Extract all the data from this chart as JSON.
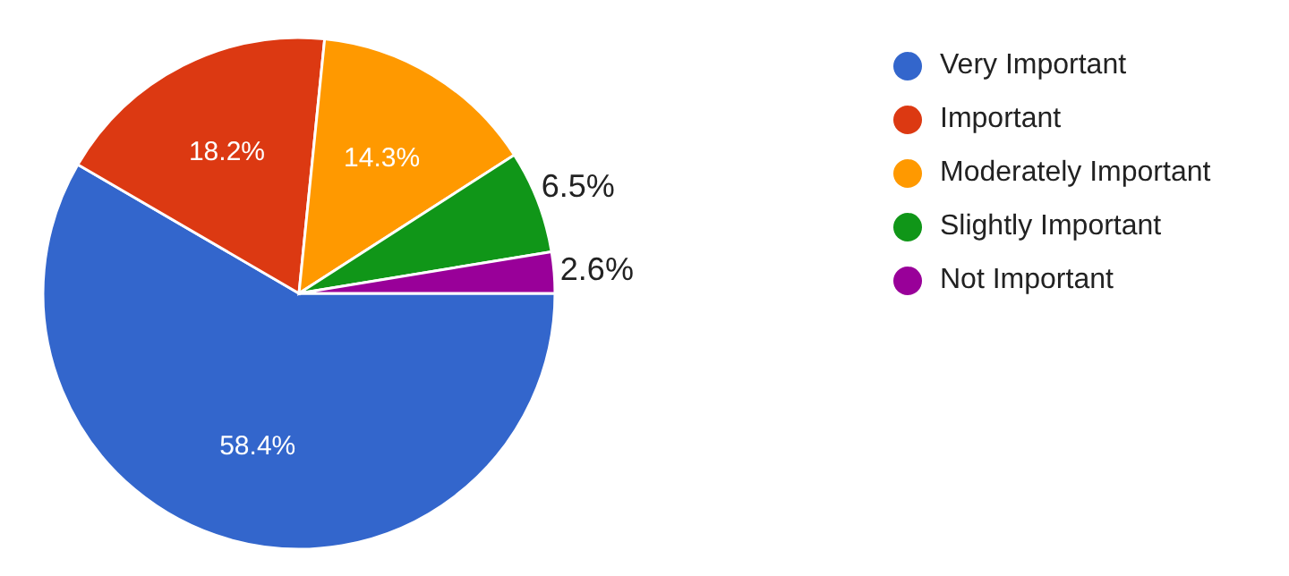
{
  "chart_data": {
    "type": "pie",
    "categories": [
      "Very Important",
      "Important",
      "Moderately Important",
      "Slightly Important",
      "Not Important"
    ],
    "values": [
      58.4,
      18.2,
      14.3,
      6.5,
      2.6
    ],
    "colors": [
      "#3366cc",
      "#dc3912",
      "#ff9900",
      "#109618",
      "#990099"
    ],
    "value_labels": [
      "58.4%",
      "18.2%",
      "14.3%",
      "6.5%",
      "2.6%"
    ],
    "legend": "top right"
  }
}
